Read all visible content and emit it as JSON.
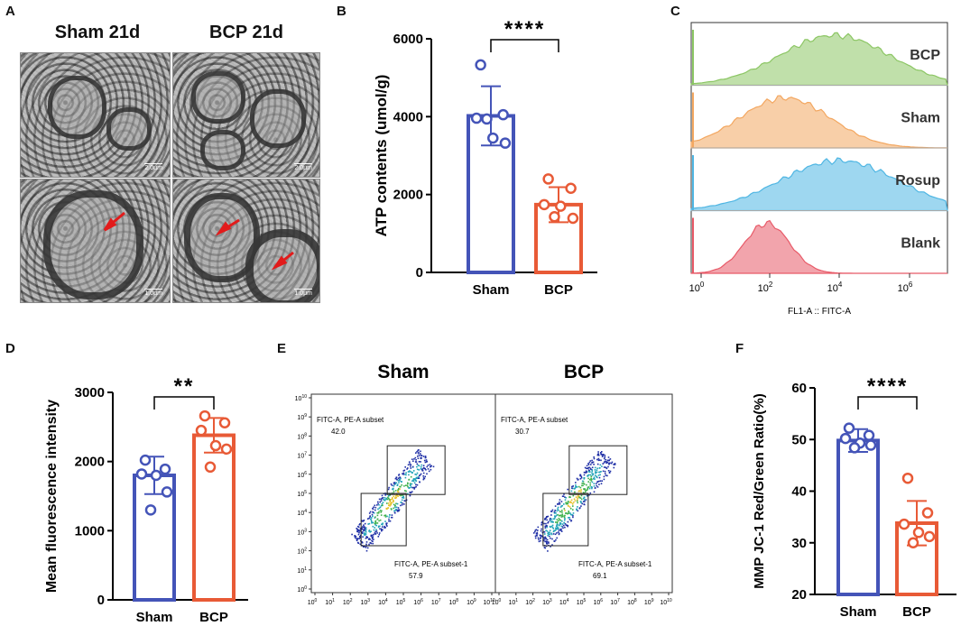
{
  "panels": {
    "A": "A",
    "B": "B",
    "C": "C",
    "D": "D",
    "E": "E",
    "F": "F"
  },
  "panel_a": {
    "left_title": "Sham 21d",
    "right_title": "BCP 21d",
    "scale_top_left": "2.0μm",
    "scale_top_right": "2.0μm",
    "scale_bottom_left": "1.0μm",
    "scale_bottom_right": "1.0μm"
  },
  "chart_data": [
    {
      "id": "B",
      "type": "bar",
      "categories": [
        "Sham",
        "BCP"
      ],
      "values": [
        4020,
        1740
      ],
      "errors": [
        760,
        450
      ],
      "points": [
        [
          5330,
          4050,
          3960,
          3450,
          3320,
          3940
        ],
        [
          2400,
          2160,
          1740,
          1700,
          1390,
          1430
        ]
      ],
      "colors": [
        "#4454b8",
        "#e85a36"
      ],
      "ylabel": "ATP contents (umol/g)",
      "ylim": [
        0,
        6000
      ],
      "yticks": [
        "0",
        "2000",
        "4000",
        "6000"
      ],
      "significance": "****"
    },
    {
      "id": "C",
      "type": "histogram-overlay",
      "tracks": [
        {
          "name": "BCP",
          "color": "#8cc664"
        },
        {
          "name": "Sham",
          "color": "#f3a760"
        },
        {
          "name": "Rosup",
          "color": "#4fb6e3"
        },
        {
          "name": "Blank",
          "color": "#e85a68"
        }
      ],
      "xlabel": "FL1-A :: FITC-A",
      "xtick_base": "10",
      "xtick_exp": [
        "0",
        "2",
        "4",
        "6"
      ]
    },
    {
      "id": "D",
      "type": "bar",
      "categories": [
        "Sham",
        "BCP"
      ],
      "values": [
        1800,
        2380
      ],
      "errors": [
        270,
        250
      ],
      "points": [
        [
          2020,
          1890,
          1820,
          1800,
          1560,
          1300
        ],
        [
          2660,
          2560,
          2450,
          2230,
          2180,
          1920
        ]
      ],
      "colors": [
        "#4454b8",
        "#e85a36"
      ],
      "ylabel": "Mean fluorescence intensity",
      "ylim": [
        0,
        3000
      ],
      "yticks": [
        "0",
        "1000",
        "2000",
        "3000"
      ],
      "significance": "**"
    },
    {
      "id": "E",
      "type": "scatter",
      "plots": [
        {
          "title": "Sham",
          "gate_upper_label": "FITC-A, PE-A subset",
          "gate_upper_value": "42.0",
          "gate_lower_label": "FITC-A, PE-A subset-1",
          "gate_lower_value": "57.9"
        },
        {
          "title": "BCP",
          "gate_upper_label": "FITC-A, PE-A subset",
          "gate_upper_value": "30.7",
          "gate_lower_label": "FITC-A, PE-A subset-1",
          "gate_lower_value": "69.1"
        }
      ],
      "axis_base": "10",
      "axis_exp": [
        "0",
        "1",
        "2",
        "3",
        "4",
        "5",
        "6",
        "7",
        "8",
        "9",
        "10"
      ]
    },
    {
      "id": "F",
      "type": "bar",
      "categories": [
        "Sham",
        "BCP"
      ],
      "values": [
        49.8,
        33.8
      ],
      "errors": [
        2.2,
        4.3
      ],
      "points": [
        [
          52.2,
          50.8,
          50.2,
          49.3,
          48.9,
          48.4
        ],
        [
          42.5,
          35.8,
          33.6,
          32.0,
          31.2,
          30.0
        ]
      ],
      "colors": [
        "#4454b8",
        "#e85a36"
      ],
      "ylabel": "MMP JC-1 Red/Green Ratio(%)",
      "ylim": [
        20,
        60
      ],
      "yticks": [
        "20",
        "30",
        "40",
        "50",
        "60"
      ],
      "significance": "****"
    }
  ]
}
